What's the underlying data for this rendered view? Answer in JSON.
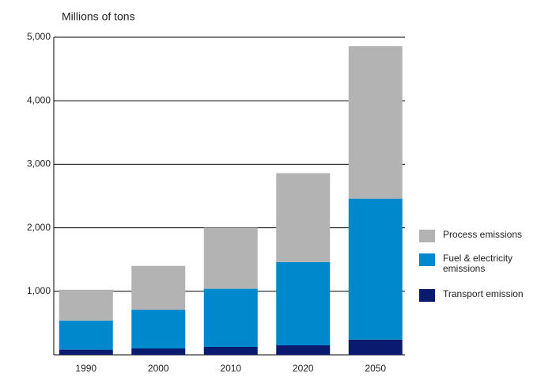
{
  "chart_data": {
    "type": "stacked_bar",
    "y_axis_label": "Millions of tons",
    "categories": [
      "1990",
      "2000",
      "2010",
      "2020",
      "2050"
    ],
    "series": [
      {
        "name": "Process emissions",
        "color": "#b3b3b3",
        "values": [
          485,
          690,
          960,
          1400,
          2400
        ]
      },
      {
        "name": "Fuel & electricity emissions",
        "color": "#0088cc",
        "values": [
          460,
          610,
          915,
          1310,
          2220
        ]
      },
      {
        "name": "Transport emission",
        "color": "#0a1a6e",
        "values": [
          80,
          100,
          125,
          150,
          240
        ]
      }
    ],
    "ylim": [
      0,
      5000
    ],
    "yticks": [
      {
        "value": 1000,
        "label": "1,000"
      },
      {
        "value": 2000,
        "label": "2,000"
      },
      {
        "value": 3000,
        "label": "3,000"
      },
      {
        "value": 4000,
        "label": "4,000"
      },
      {
        "value": 5000,
        "label": "5,000"
      }
    ],
    "grid": true
  }
}
